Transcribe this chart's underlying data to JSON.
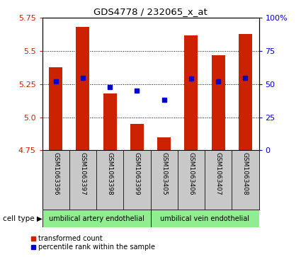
{
  "title": "GDS4778 / 232065_x_at",
  "samples": [
    "GSM1063396",
    "GSM1063397",
    "GSM1063398",
    "GSM1063399",
    "GSM1063405",
    "GSM1063406",
    "GSM1063407",
    "GSM1063408"
  ],
  "bar_values": [
    5.38,
    5.68,
    5.18,
    4.95,
    4.85,
    5.62,
    5.47,
    5.63
  ],
  "percentile_values": [
    52,
    55,
    48,
    45,
    38,
    54,
    52,
    55
  ],
  "bar_bottom": 4.75,
  "ylim": [
    4.75,
    5.75
  ],
  "y2lim": [
    0,
    100
  ],
  "yticks": [
    4.75,
    5.0,
    5.25,
    5.5,
    5.75
  ],
  "y2ticks": [
    0,
    25,
    50,
    75,
    100
  ],
  "bar_color": "#cc2200",
  "dot_color": "#0000cc",
  "group1_label": "umbilical artery endothelial",
  "group2_label": "umbilical vein endothelial",
  "group1_samples": [
    0,
    1,
    2,
    3
  ],
  "group2_samples": [
    4,
    5,
    6,
    7
  ],
  "cell_type_label": "cell type",
  "legend_bar_label": "transformed count",
  "legend_dot_label": "percentile rank within the sample",
  "bar_width": 0.5,
  "axis_label_color_left": "#cc2200",
  "axis_label_color_right": "#0000cc",
  "tick_area_bg": "#c8c8c8",
  "group_bg": "#90ee90"
}
